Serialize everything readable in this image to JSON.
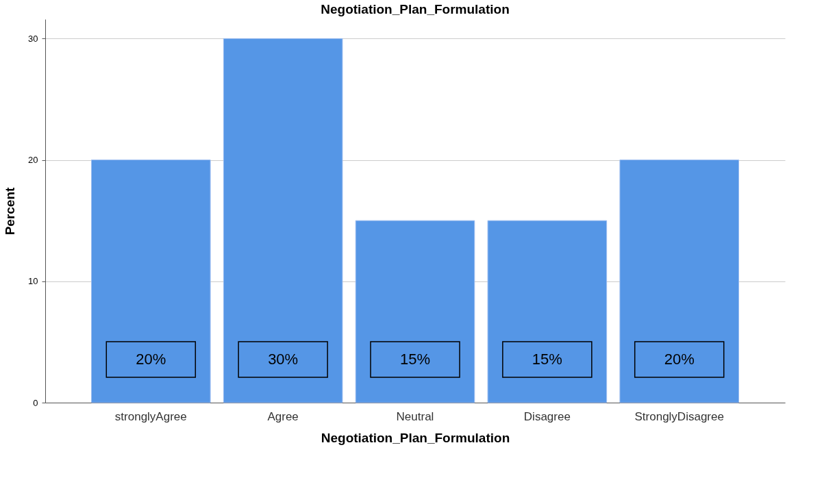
{
  "chart_data": {
    "type": "bar",
    "title": "Negotiation_Plan_Formulation",
    "xlabel": "Negotiation_Plan_Formulation",
    "ylabel": "Percent",
    "categories": [
      "stronglyAgree",
      "Agree",
      "Neutral",
      "Disagree",
      "StronglyDisagree"
    ],
    "values": [
      20,
      30,
      15,
      15,
      20
    ],
    "value_labels": [
      "20%",
      "30%",
      "15%",
      "15%",
      "20%"
    ],
    "color": "#5596e6",
    "ylim": [
      0,
      31.6
    ],
    "yticks": [
      0,
      10,
      20,
      30
    ],
    "grid": "y"
  }
}
